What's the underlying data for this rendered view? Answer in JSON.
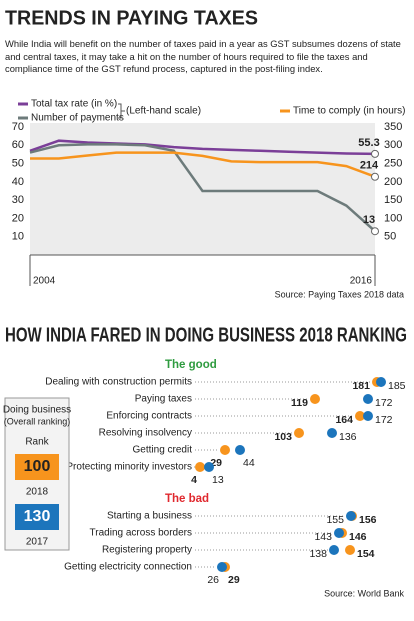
{
  "chart_data": [
    {
      "type": "line",
      "title": "TRENDS IN PAYING TAXES",
      "subtitle": "While India will benefit on the number of taxes paid in a year as GST subsumes dozens of state and central taxes, it may take a hit on the number of hours required to file the taxes and compliance time of the GST refund process, captured in the post-filing index.",
      "x": [
        2004,
        2005,
        2006,
        2007,
        2008,
        2009,
        2010,
        2011,
        2012,
        2013,
        2014,
        2015,
        2016
      ],
      "xlim": [
        2004,
        2016
      ],
      "xticks": [
        2004,
        2016
      ],
      "ylim": [
        0,
        70
      ],
      "yticks": [
        10,
        20,
        30,
        40,
        50,
        60,
        70
      ],
      "y2lim": [
        0,
        350
      ],
      "y2ticks": [
        50,
        100,
        150,
        200,
        250,
        300,
        350
      ],
      "series": [
        {
          "name": "Total tax rate (in %)",
          "color": "#7b3f98",
          "values": [
            57,
            62.5,
            61.5,
            61,
            60.5,
            59,
            58,
            57.5,
            57,
            56.5,
            56,
            55.5,
            55.3
          ]
        },
        {
          "name": "Number of payments",
          "color": "#6d7b7b",
          "values": [
            56,
            60,
            60.5,
            60.5,
            60,
            57,
            35,
            35,
            35,
            35,
            35,
            27,
            13
          ]
        },
        {
          "name": "Time to comply (in hours)",
          "color": "#f7941d",
          "axis": "y2",
          "values": [
            264,
            264,
            272,
            280,
            280,
            280,
            271,
            256,
            254,
            254,
            254,
            243,
            214
          ]
        }
      ],
      "left_scale_note": "(Left-hand scale)",
      "end_labels": true,
      "source": "Source: Paying Taxes 2018 data"
    },
    {
      "type": "dumbbell",
      "title": "HOW INDIA FARED IN DOING BUSINESS 2018 RANKING",
      "xlim": [
        0,
        190
      ],
      "series": [
        {
          "name": "2018",
          "color": "#f7941d"
        },
        {
          "name": "2017",
          "color": "#1c75bc"
        }
      ],
      "groups": [
        {
          "label": "The good",
          "color": "#2e9b3f",
          "categories": [
            "Dealing with construction permits",
            "Paying taxes",
            "Enforcing contracts",
            "Resolving insolvency",
            "Getting credit",
            "Protecting minority investors"
          ],
          "series_values": [
            [
              181,
              119,
              164,
              103,
              29,
              4
            ],
            [
              185,
              172,
              172,
              136,
              44,
              13
            ]
          ]
        },
        {
          "label": "The bad",
          "color": "#e0282e",
          "categories": [
            "Starting a business",
            "Trading across borders",
            "Registering property",
            "Getting electricity connection"
          ],
          "series_values": [
            [
              156,
              146,
              154,
              29
            ],
            [
              155,
              143,
              138,
              26
            ]
          ]
        }
      ],
      "legend_box": {
        "heading": "Doing business",
        "subheading": "(Overall ranking)",
        "rank_label": "Rank",
        "values": [
          100,
          130
        ]
      },
      "source": "Source: World Bank"
    }
  ]
}
